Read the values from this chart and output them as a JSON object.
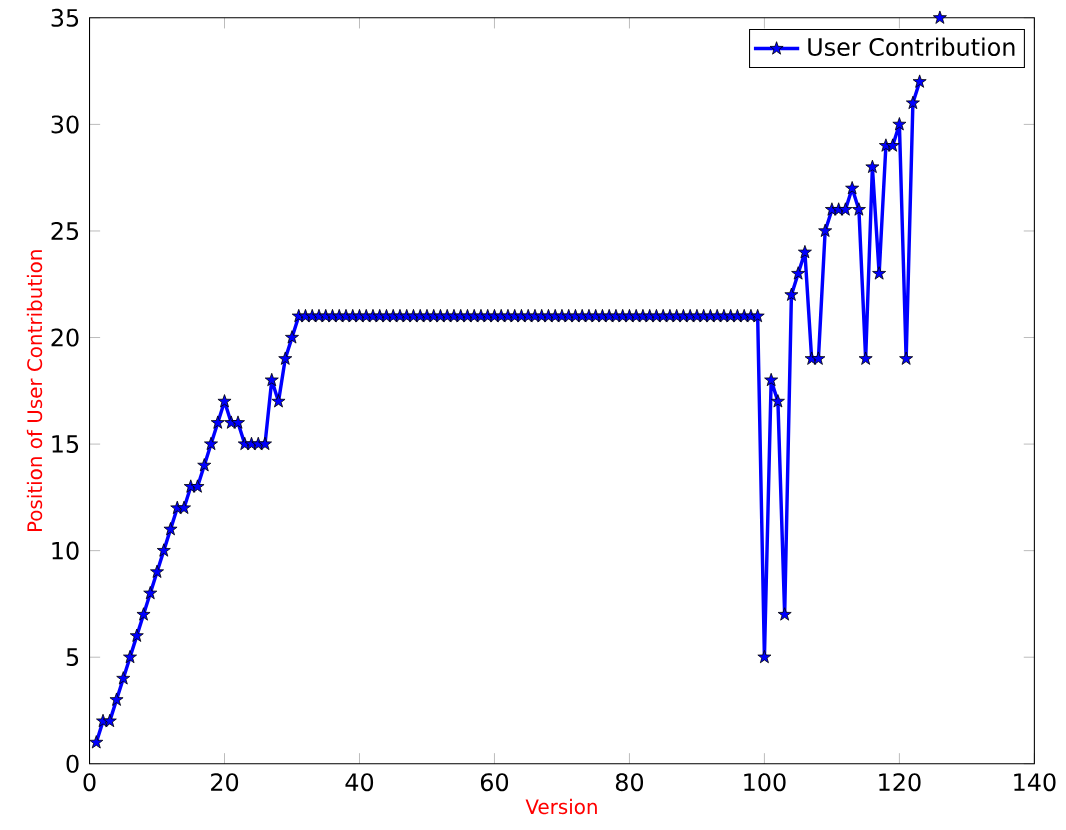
{
  "chart_data": {
    "type": "line",
    "xlabel": "Version",
    "ylabel": "Position of User Contribution",
    "xlim": [
      0,
      140
    ],
    "ylim": [
      0,
      35
    ],
    "xticks": [
      0,
      20,
      40,
      60,
      80,
      100,
      120,
      140
    ],
    "yticks": [
      0,
      5,
      10,
      15,
      20,
      25,
      30,
      35
    ],
    "grid": false,
    "legend": "top right",
    "marker": "star",
    "line_style": "solid",
    "series": [
      {
        "name": "User Contribution",
        "color": "#0000ff",
        "x": [
          1,
          2,
          3,
          4,
          5,
          6,
          7,
          8,
          9,
          10,
          11,
          12,
          13,
          14,
          15,
          16,
          17,
          18,
          19,
          20,
          21,
          22,
          23,
          24,
          25,
          26,
          27,
          28,
          29,
          30,
          31,
          32,
          33,
          34,
          35,
          36,
          37,
          38,
          39,
          40,
          41,
          42,
          43,
          44,
          45,
          46,
          47,
          48,
          49,
          50,
          51,
          52,
          53,
          54,
          55,
          56,
          57,
          58,
          59,
          60,
          61,
          62,
          63,
          64,
          65,
          66,
          67,
          68,
          69,
          70,
          71,
          72,
          73,
          74,
          75,
          76,
          77,
          78,
          79,
          80,
          81,
          82,
          83,
          84,
          85,
          86,
          87,
          88,
          89,
          90,
          91,
          92,
          93,
          94,
          95,
          96,
          97,
          98,
          99,
          100,
          101,
          102,
          103,
          104,
          105,
          106,
          107,
          108,
          109,
          110,
          111,
          112,
          113,
          114,
          115,
          116,
          117,
          118,
          119,
          120,
          121,
          122,
          123,
          124,
          125,
          126
        ],
        "values": [
          1,
          2,
          2,
          3,
          4,
          5,
          6,
          7,
          8,
          9,
          10,
          11,
          12,
          12,
          13,
          13,
          14,
          15,
          16,
          17,
          16,
          16,
          15,
          15,
          15,
          15,
          18,
          17,
          19,
          20,
          21,
          21,
          21,
          21,
          21,
          21,
          21,
          21,
          21,
          21,
          21,
          21,
          21,
          21,
          21,
          21,
          21,
          21,
          21,
          21,
          21,
          21,
          21,
          21,
          21,
          21,
          21,
          21,
          21,
          21,
          21,
          21,
          21,
          21,
          21,
          21,
          21,
          21,
          21,
          21,
          21,
          21,
          21,
          21,
          21,
          21,
          21,
          21,
          21,
          21,
          21,
          21,
          21,
          21,
          21,
          21,
          21,
          21,
          21,
          21,
          21,
          21,
          21,
          21,
          21,
          21,
          21,
          21,
          21,
          5,
          18,
          17,
          7,
          22,
          23,
          24,
          19,
          19,
          25,
          26,
          26,
          26,
          27,
          26,
          19,
          28,
          23,
          29,
          29,
          30,
          19,
          31,
          32,
          null,
          null,
          35
        ]
      }
    ]
  }
}
